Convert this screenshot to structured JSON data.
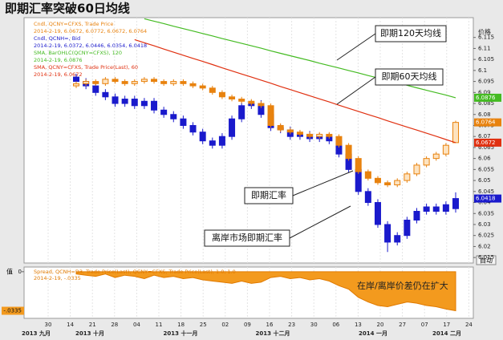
{
  "ui": {
    "auto_button": "自动"
  },
  "chart_data": [
    {
      "type": "candlestick",
      "title": "即期汇率突破60日均线",
      "y_axis_label": "价格",
      "ylim": [
        6.0125,
        6.124
      ],
      "yticks": [
        6.115,
        6.11,
        6.105,
        6.1,
        6.095,
        6.09,
        6.085,
        6.08,
        6.075,
        6.07,
        6.065,
        6.06,
        6.055,
        6.05,
        6.045,
        6.04,
        6.035,
        6.03,
        6.025,
        6.02,
        6.015
      ],
      "x_labels": [
        "30",
        "14",
        "21",
        "28",
        "04",
        "11",
        "18",
        "25",
        "02",
        "09",
        "16",
        "23",
        "30",
        "06",
        "13",
        "20",
        "27",
        "07",
        "17",
        "24"
      ],
      "month_labels": [
        "2013 九月",
        "2013 十月",
        "2013 十一月",
        "2013 十二月",
        "2014 一月",
        "2014 二月"
      ],
      "legend": [
        {
          "color": "#e8820e",
          "lines": [
            "Cndl, QCNY=CFXS, Trade Price",
            "2014-2-19, 6.0672, 6.0772, 6.0672, 6.0764"
          ]
        },
        {
          "color": "#1a1acc",
          "lines": [
            "Cndl, QCNH=, Bid",
            "2014-2-19, 6.0372, 6.0446, 6.0354, 6.0418"
          ]
        },
        {
          "color": "#44bb22",
          "lines": [
            "SMA, BarOHLC(QCNY=CFXS), 120",
            "2014-2-19, 6.0876"
          ]
        },
        {
          "color": "#e03010",
          "lines": [
            "SMA, QCNY=CFXS, Trade Price(Last), 60",
            "2014-2-19, 6.0672"
          ]
        }
      ],
      "series": [
        {
          "name": "Cndl, QCNH=, Bid",
          "kind": "candle",
          "color": "#1a1acc",
          "ohlc": [
            [
              6.097,
              6.0985,
              6.0935,
              6.095
            ],
            [
              6.095,
              6.0965,
              6.0915,
              6.093
            ],
            [
              6.093,
              6.0945,
              6.0885,
              6.09
            ],
            [
              6.09,
              6.0915,
              6.0865,
              6.088
            ],
            [
              6.088,
              6.0895,
              6.0835,
              6.085
            ],
            [
              6.085,
              6.0885,
              6.0835,
              6.087
            ],
            [
              6.087,
              6.0885,
              6.0825,
              6.084
            ],
            [
              6.084,
              6.0875,
              6.0825,
              6.086
            ],
            [
              6.086,
              6.0875,
              6.0805,
              6.082
            ],
            [
              6.082,
              6.0835,
              6.0785,
              6.08
            ],
            [
              6.08,
              6.0815,
              6.0765,
              6.078
            ],
            [
              6.078,
              6.0795,
              6.0735,
              6.075
            ],
            [
              6.075,
              6.0765,
              6.0705,
              6.072
            ],
            [
              6.072,
              6.0735,
              6.0665,
              6.068
            ],
            [
              6.068,
              6.0695,
              6.0645,
              6.066
            ],
            [
              6.066,
              6.0715,
              6.0645,
              6.07
            ],
            [
              6.07,
              6.0795,
              6.0685,
              6.078
            ],
            [
              6.078,
              6.0855,
              6.0765,
              6.084
            ],
            [
              6.084,
              6.0865,
              6.0825,
              6.085
            ],
            [
              6.085,
              6.0865,
              6.0785,
              6.08
            ],
            [
              6.08,
              6.0815,
              6.0725,
              6.074
            ],
            [
              6.074,
              6.0755,
              6.0715,
              6.073
            ],
            [
              6.073,
              6.0745,
              6.0685,
              6.07
            ],
            [
              6.07,
              6.0725,
              6.0685,
              6.071
            ],
            [
              6.071,
              6.0725,
              6.0675,
              6.069
            ],
            [
              6.069,
              6.0715,
              6.0675,
              6.07
            ],
            [
              6.07,
              6.0715,
              6.0665,
              6.068
            ],
            [
              6.068,
              6.0695,
              6.0605,
              6.062
            ],
            [
              6.062,
              6.0635,
              6.0535,
              6.055
            ],
            [
              6.055,
              6.0565,
              6.0435,
              6.045
            ],
            [
              6.045,
              6.0465,
              6.0385,
              6.04
            ],
            [
              6.04,
              6.0415,
              6.0285,
              6.03
            ],
            [
              6.03,
              6.0315,
              6.0175,
              6.022
            ],
            [
              6.022,
              6.0265,
              6.0205,
              6.025
            ],
            [
              6.025,
              6.0335,
              6.0235,
              6.032
            ],
            [
              6.032,
              6.0375,
              6.0305,
              6.036
            ],
            [
              6.036,
              6.0395,
              6.0345,
              6.038
            ],
            [
              6.038,
              6.0395,
              6.0345,
              6.036
            ],
            [
              6.036,
              6.0405,
              6.0345,
              6.039
            ],
            [
              6.0372,
              6.0446,
              6.0354,
              6.0418
            ]
          ]
        },
        {
          "name": "Cndl, QCNY=CFXS, Trade Price",
          "kind": "candle",
          "color": "#e8820e",
          "ohlc": [
            [
              6.093,
              6.095,
              6.092,
              6.094
            ],
            [
              6.094,
              6.096,
              6.093,
              6.095
            ],
            [
              6.095,
              6.096,
              6.093,
              6.094
            ],
            [
              6.094,
              6.097,
              6.093,
              6.096
            ],
            [
              6.096,
              6.097,
              6.094,
              6.095
            ],
            [
              6.095,
              6.096,
              6.093,
              6.094
            ],
            [
              6.094,
              6.096,
              6.093,
              6.095
            ],
            [
              6.095,
              6.097,
              6.094,
              6.096
            ],
            [
              6.096,
              6.097,
              6.094,
              6.095
            ],
            [
              6.095,
              6.096,
              6.093,
              6.094
            ],
            [
              6.094,
              6.096,
              6.093,
              6.095
            ],
            [
              6.095,
              6.096,
              6.093,
              6.094
            ],
            [
              6.094,
              6.095,
              6.092,
              6.093
            ],
            [
              6.093,
              6.094,
              6.091,
              6.092
            ],
            [
              6.092,
              6.093,
              6.089,
              6.09
            ],
            [
              6.09,
              6.091,
              6.087,
              6.088
            ],
            [
              6.088,
              6.089,
              6.086,
              6.087
            ],
            [
              6.087,
              6.088,
              6.085,
              6.086
            ],
            [
              6.086,
              6.087,
              6.084,
              6.085
            ],
            [
              6.085,
              6.086,
              6.083,
              6.084
            ],
            [
              6.084,
              6.085,
              6.074,
              6.075
            ],
            [
              6.075,
              6.076,
              6.072,
              6.073
            ],
            [
              6.073,
              6.074,
              6.071,
              6.072
            ],
            [
              6.072,
              6.073,
              6.07,
              6.071
            ],
            [
              6.071,
              6.072,
              6.069,
              6.07
            ],
            [
              6.07,
              6.072,
              6.069,
              6.071
            ],
            [
              6.071,
              6.072,
              6.069,
              6.07
            ],
            [
              6.07,
              6.071,
              6.065,
              6.066
            ],
            [
              6.066,
              6.067,
              6.059,
              6.06
            ],
            [
              6.06,
              6.061,
              6.053,
              6.054
            ],
            [
              6.054,
              6.055,
              6.05,
              6.051
            ],
            [
              6.051,
              6.052,
              6.048,
              6.049
            ],
            [
              6.049,
              6.05,
              6.047,
              6.048
            ],
            [
              6.048,
              6.051,
              6.047,
              6.05
            ],
            [
              6.05,
              6.054,
              6.049,
              6.053
            ],
            [
              6.053,
              6.058,
              6.052,
              6.057
            ],
            [
              6.057,
              6.061,
              6.056,
              6.06
            ],
            [
              6.06,
              6.063,
              6.059,
              6.062
            ],
            [
              6.062,
              6.067,
              6.061,
              6.066
            ],
            [
              6.0672,
              6.0772,
              6.0672,
              6.0764
            ]
          ]
        },
        {
          "name": "SMA, BarOHLC(QCNY=CFXS), 120",
          "kind": "line",
          "color": "#44bb22",
          "values": [
            null,
            null,
            null,
            null,
            null,
            null,
            null,
            6.1235,
            6.1224,
            6.1213,
            6.1201,
            6.119,
            6.1179,
            6.1168,
            6.1157,
            6.1145,
            6.1134,
            6.1123,
            6.1112,
            6.1101,
            6.1089,
            6.1078,
            6.1067,
            6.1056,
            6.1045,
            6.1033,
            6.1022,
            6.1011,
            6.1,
            6.0989,
            6.0977,
            6.0966,
            6.0955,
            6.0944,
            6.0933,
            6.0921,
            6.091,
            6.0899,
            6.0888,
            6.0876
          ]
        },
        {
          "name": "SMA, QCNY=CFXS, Trade Price(Last), 60",
          "kind": "line",
          "color": "#e03010",
          "values": [
            null,
            null,
            null,
            null,
            null,
            null,
            6.114,
            6.1126,
            6.1112,
            6.1097,
            6.1083,
            6.1069,
            6.1055,
            6.1041,
            6.1027,
            6.1012,
            6.0998,
            6.0984,
            6.097,
            6.0956,
            6.0942,
            6.0927,
            6.0913,
            6.0899,
            6.0885,
            6.0871,
            6.0857,
            6.0842,
            6.0828,
            6.0814,
            6.08,
            6.0786,
            6.0771,
            6.0757,
            6.0743,
            6.0729,
            6.0715,
            6.0701,
            6.0686,
            6.0672
          ]
        }
      ],
      "annotations": [
        "即期120天均线",
        "即期60天均线",
        "即期汇率",
        "离岸市场即期汇率"
      ]
    },
    {
      "type": "area",
      "y_axis_label": "值",
      "color": "#f39a1e",
      "legend": [
        "Spread, QCNH=D3, Trade Price(Last), QCNY=CFXS, Trade Price(Last), 1.0, 1.0",
        "2014-2-19, -.0335"
      ],
      "ylim": [
        -0.04,
        0.004
      ],
      "yticks": [
        0,
        {
          "value": -0.0335,
          "label": "-.0335"
        }
      ],
      "values": [
        -0.002,
        -0.003,
        -0.004,
        -0.002,
        -0.005,
        -0.003,
        -0.004,
        -0.006,
        -0.003,
        -0.005,
        -0.004,
        -0.006,
        -0.005,
        -0.007,
        -0.008,
        -0.009,
        -0.01,
        -0.008,
        -0.01,
        -0.009,
        -0.005,
        -0.004,
        -0.006,
        -0.005,
        -0.007,
        -0.006,
        -0.008,
        -0.012,
        -0.015,
        -0.022,
        -0.026,
        -0.029,
        -0.03,
        -0.028,
        -0.026,
        -0.027,
        -0.029,
        -0.03,
        -0.032,
        -0.0335
      ],
      "annotation": "在岸/离岸价差仍在扩大"
    }
  ]
}
